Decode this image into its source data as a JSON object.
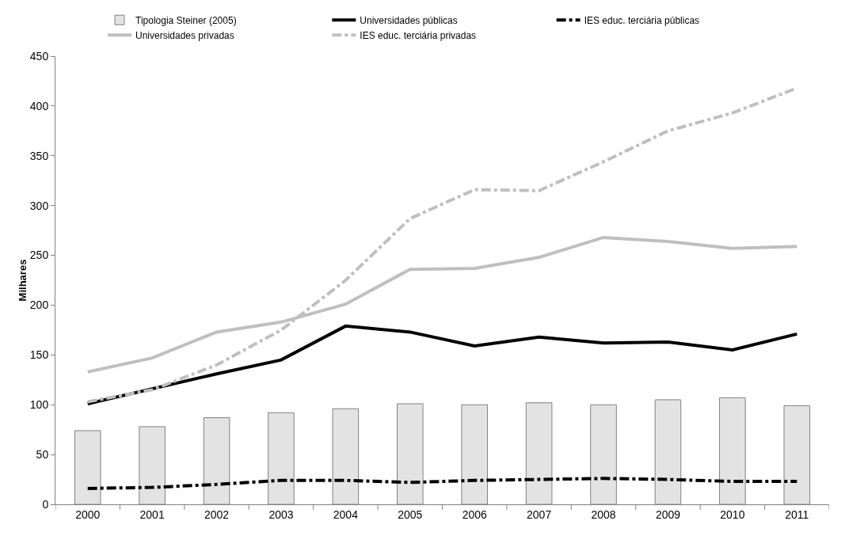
{
  "chart_data": {
    "type": "line",
    "ylabel": "Milhares",
    "categories": [
      "2000",
      "2001",
      "2002",
      "2003",
      "2004",
      "2005",
      "2006",
      "2007",
      "2008",
      "2009",
      "2010",
      "2011"
    ],
    "ylim": [
      0,
      450
    ],
    "yticks": [
      0,
      50,
      100,
      150,
      200,
      250,
      300,
      350,
      400,
      450
    ],
    "grid": false,
    "legend": "top",
    "marker": "none",
    "series": [
      {
        "name": "Tipologia Steiner (2005)",
        "type": "bar",
        "color": "#e3e3e3",
        "values": [
          74,
          78,
          87,
          92,
          96,
          101,
          100,
          102,
          100,
          105,
          107,
          99
        ]
      },
      {
        "name": "Universidades públicas",
        "color": "#000000",
        "line_style": "solid",
        "values": [
          101,
          116,
          131,
          145,
          179,
          173,
          159,
          168,
          162,
          163,
          155,
          171
        ]
      },
      {
        "name": "IES educ. terciária públicas",
        "color": "#000000",
        "line_style": "dashdot",
        "values": [
          16,
          17,
          20,
          24,
          24,
          22,
          24,
          25,
          26,
          25,
          23,
          23
        ]
      },
      {
        "name": "Universidades privadas",
        "color": "#bfbfbf",
        "line_style": "solid",
        "values": [
          133,
          147,
          173,
          183,
          201,
          236,
          237,
          248,
          268,
          264,
          257,
          259
        ]
      },
      {
        "name": "IES educ. terciária privadas",
        "color": "#bfbfbf",
        "line_style": "dashdot",
        "values": [
          103,
          115,
          140,
          175,
          225,
          287,
          316,
          315,
          344,
          375,
          393,
          418
        ]
      }
    ]
  }
}
